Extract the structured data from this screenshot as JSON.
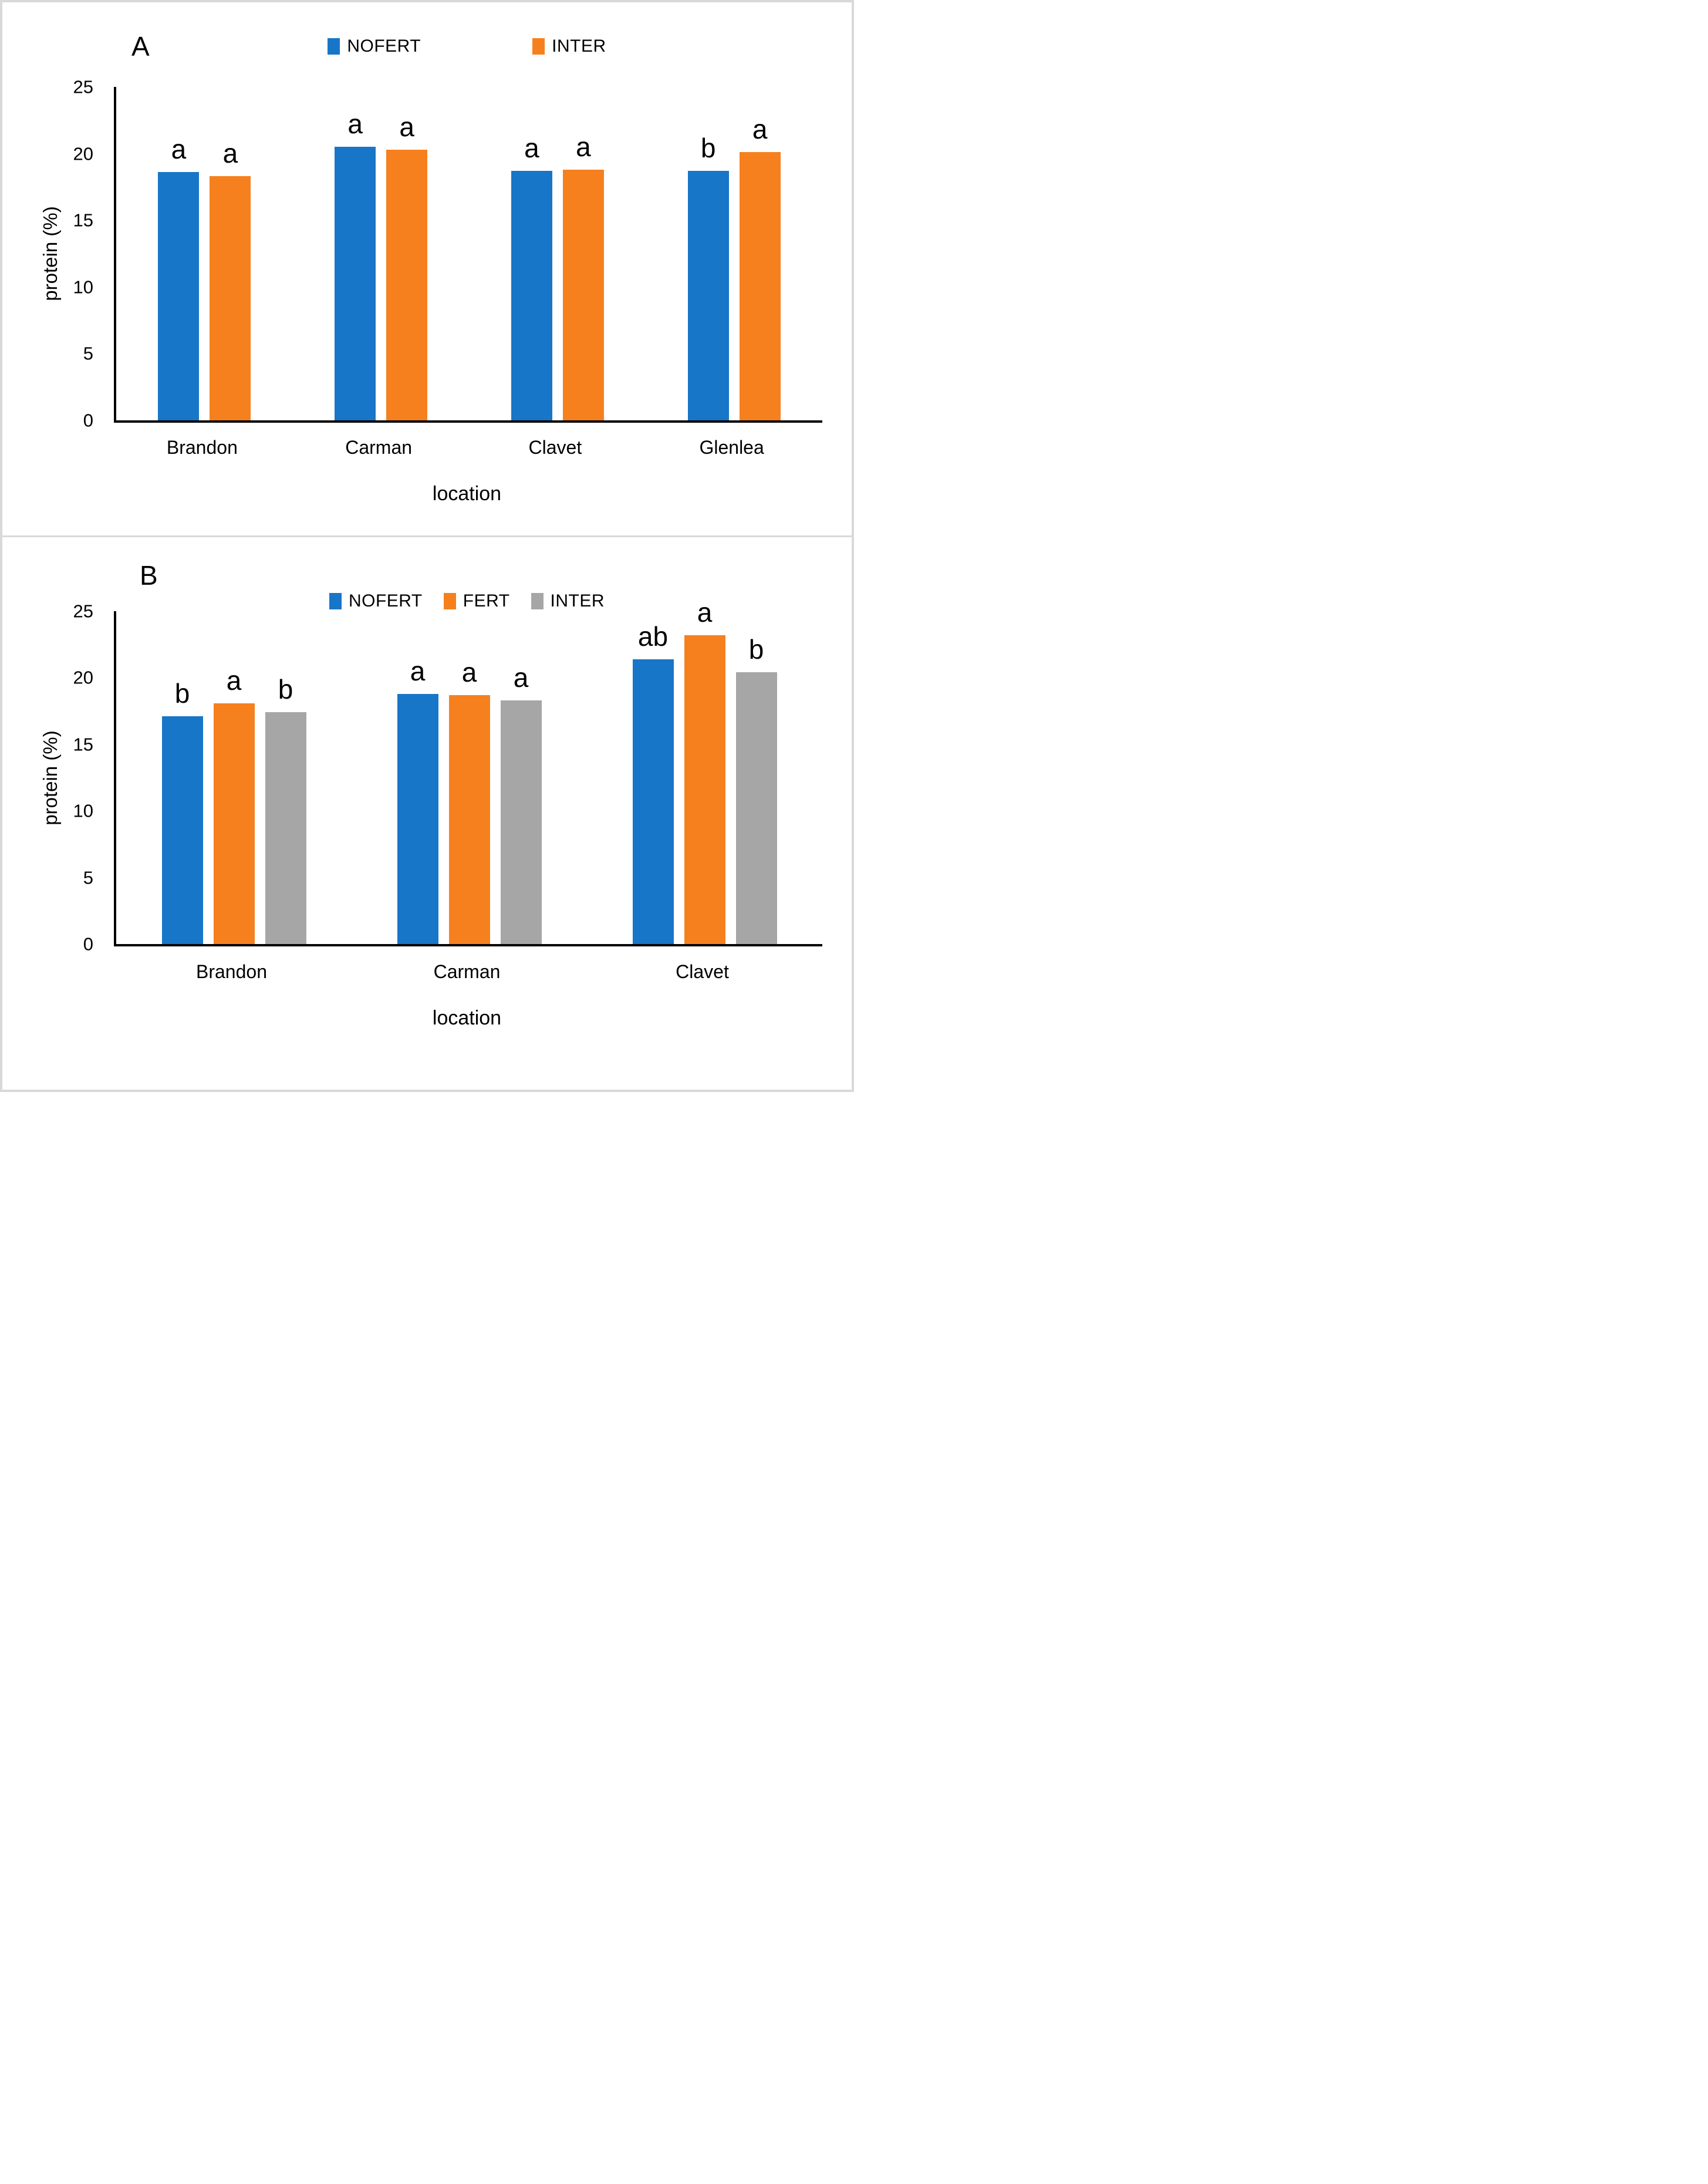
{
  "figure": {
    "border_color": "#D9D9D9",
    "background": "#FFFFFF",
    "axis_color": "#000000"
  },
  "chart_data": [
    {
      "type": "bar",
      "panel_label": "A",
      "title": "",
      "xlabel": "location",
      "ylabel": "protein (%)",
      "ylim": [
        0,
        25
      ],
      "yticks": [
        0,
        5,
        10,
        15,
        20,
        25
      ],
      "grid": "off",
      "legend_position": "top-center",
      "categories": [
        "Brandon",
        "Carman",
        "Clavet",
        "Glenlea"
      ],
      "series": [
        {
          "name": "NOFERT",
          "color": "#1776C8",
          "values": [
            18.6,
            20.5,
            18.7,
            18.7
          ]
        },
        {
          "name": "INTER",
          "color": "#F6801E",
          "values": [
            18.3,
            20.3,
            18.8,
            20.1
          ]
        }
      ],
      "significance_letters": [
        [
          "a",
          "a"
        ],
        [
          "a",
          "a"
        ],
        [
          "a",
          "a"
        ],
        [
          "b",
          "a"
        ]
      ]
    },
    {
      "type": "bar",
      "panel_label": "B",
      "title": "",
      "xlabel": "location",
      "ylabel": "protein (%)",
      "ylim": [
        0,
        25
      ],
      "yticks": [
        0,
        5,
        10,
        15,
        20,
        25
      ],
      "grid": "off",
      "legend_position": "top-center",
      "categories": [
        "Brandon",
        "Carman",
        "Clavet"
      ],
      "series": [
        {
          "name": "NOFERT",
          "color": "#1776C8",
          "values": [
            17.1,
            18.8,
            21.4
          ]
        },
        {
          "name": "FERT",
          "color": "#F6801E",
          "values": [
            18.1,
            18.7,
            23.2
          ]
        },
        {
          "name": "INTER",
          "color": "#A6A6A6",
          "values": [
            17.4,
            18.3,
            20.4
          ]
        }
      ],
      "significance_letters": [
        [
          "b",
          "a",
          "b"
        ],
        [
          "a",
          "a",
          "a"
        ],
        [
          "ab",
          "a",
          "b"
        ]
      ]
    }
  ]
}
